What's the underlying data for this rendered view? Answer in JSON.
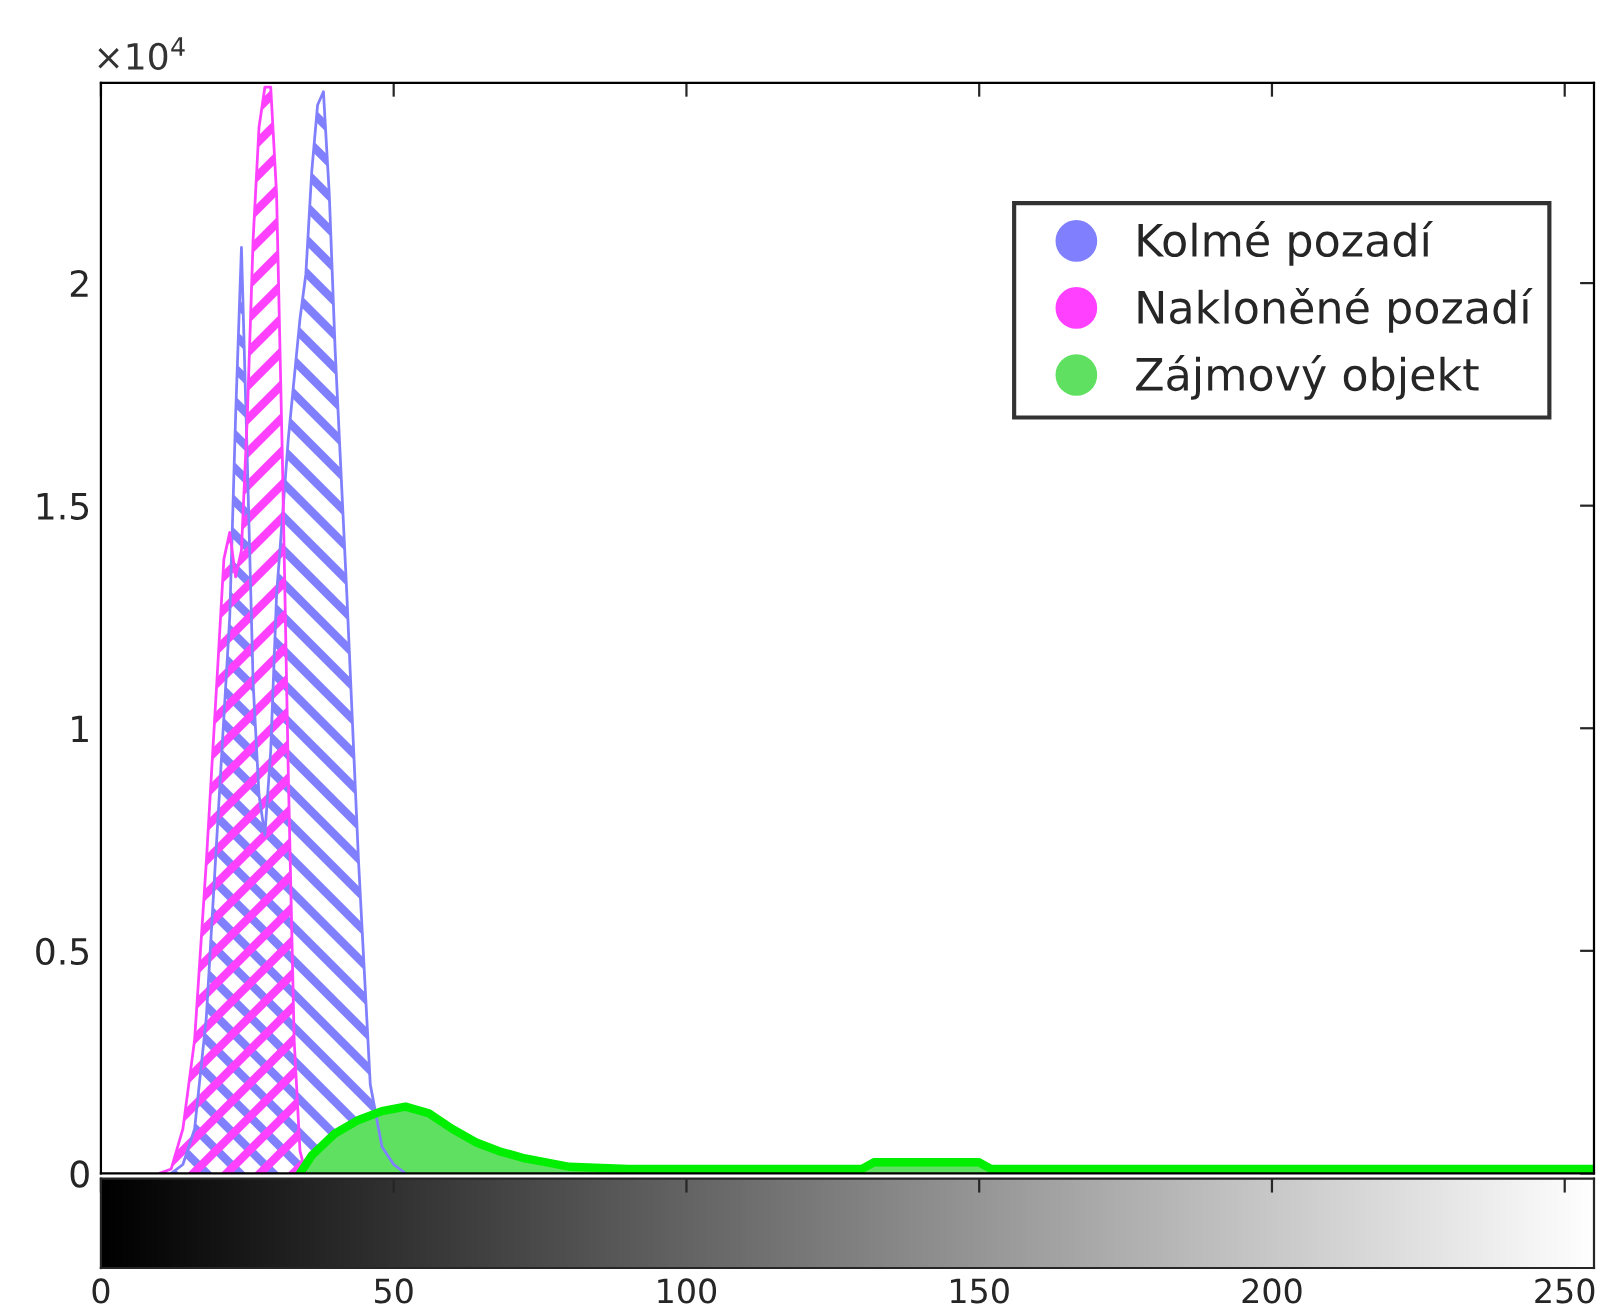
{
  "chart_data": {
    "type": "area",
    "xlim": [
      0,
      255
    ],
    "xticks": [
      0,
      50,
      100,
      150,
      200,
      250
    ],
    "ylim": [
      0,
      2.45
    ],
    "yticks": [
      0,
      0.5,
      1,
      1.5,
      2
    ],
    "annotations": [
      "×10$^{4}$"
    ],
    "legend": "top right",
    "grid": false,
    "series": [
      {
        "name": "Kolmé pozadí",
        "color": "#8080ff",
        "x": [
          12,
          14,
          16,
          18,
          20,
          22,
          23,
          24,
          25,
          26,
          27,
          28,
          29,
          30,
          32,
          34,
          35,
          36,
          37,
          38,
          39,
          40,
          42,
          44,
          46,
          48,
          50,
          52
        ],
        "values": [
          0,
          0.02,
          0.1,
          0.35,
          0.8,
          1.25,
          1.7,
          2.08,
          1.6,
          1.1,
          0.85,
          0.76,
          0.95,
          1.3,
          1.65,
          1.92,
          2.02,
          2.25,
          2.4,
          2.43,
          2.2,
          1.85,
          1.3,
          0.7,
          0.2,
          0.06,
          0.02,
          0
        ]
      },
      {
        "name": "Nakloněné pozadí",
        "color": "#ff40ff",
        "x": [
          10,
          12,
          14,
          16,
          18,
          20,
          21,
          22,
          23,
          24,
          25,
          26,
          27,
          28,
          29,
          30,
          31,
          32,
          33,
          34,
          35
        ],
        "values": [
          0,
          0.01,
          0.1,
          0.3,
          0.7,
          1.15,
          1.38,
          1.44,
          1.34,
          1.4,
          1.7,
          2.1,
          2.35,
          2.44,
          2.44,
          2.2,
          1.6,
          0.9,
          0.3,
          0.05,
          0
        ]
      },
      {
        "name": "Zájmový objekt",
        "color": "#60e060",
        "x": [
          34,
          36,
          40,
          44,
          48,
          52,
          56,
          60,
          64,
          68,
          72,
          76,
          80,
          90,
          100,
          130,
          132,
          140,
          145,
          150,
          152,
          160,
          255
        ],
        "values": [
          0,
          0.04,
          0.09,
          0.12,
          0.14,
          0.15,
          0.135,
          0.1,
          0.07,
          0.05,
          0.035,
          0.025,
          0.015,
          0.01,
          0.01,
          0.01,
          0.025,
          0.025,
          0.025,
          0.025,
          0.01,
          0.01,
          0.01
        ]
      }
    ]
  }
}
